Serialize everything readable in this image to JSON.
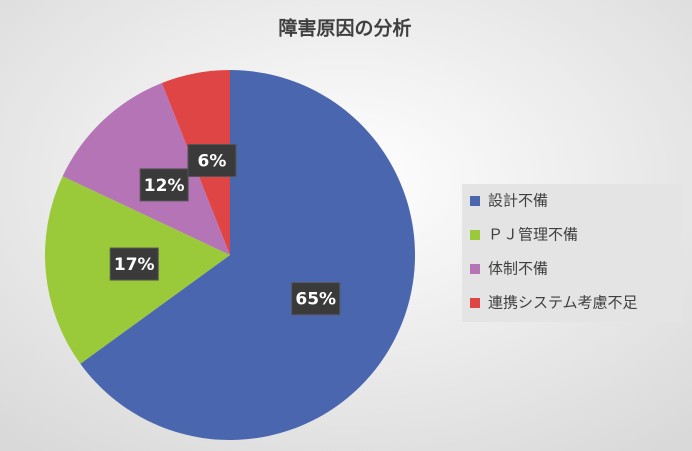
{
  "chart_data": {
    "type": "pie",
    "title": "障害原因の分析",
    "categories": [
      "設計不備",
      "ＰＪ管理不備",
      "体制不備",
      "連携システム考慮不足"
    ],
    "values": [
      65,
      17,
      12,
      6
    ],
    "value_labels": [
      "65%",
      "17%",
      "12%",
      "6%"
    ],
    "colors": [
      "#4a66ae",
      "#9ac93a",
      "#b574b5",
      "#e04545"
    ]
  }
}
